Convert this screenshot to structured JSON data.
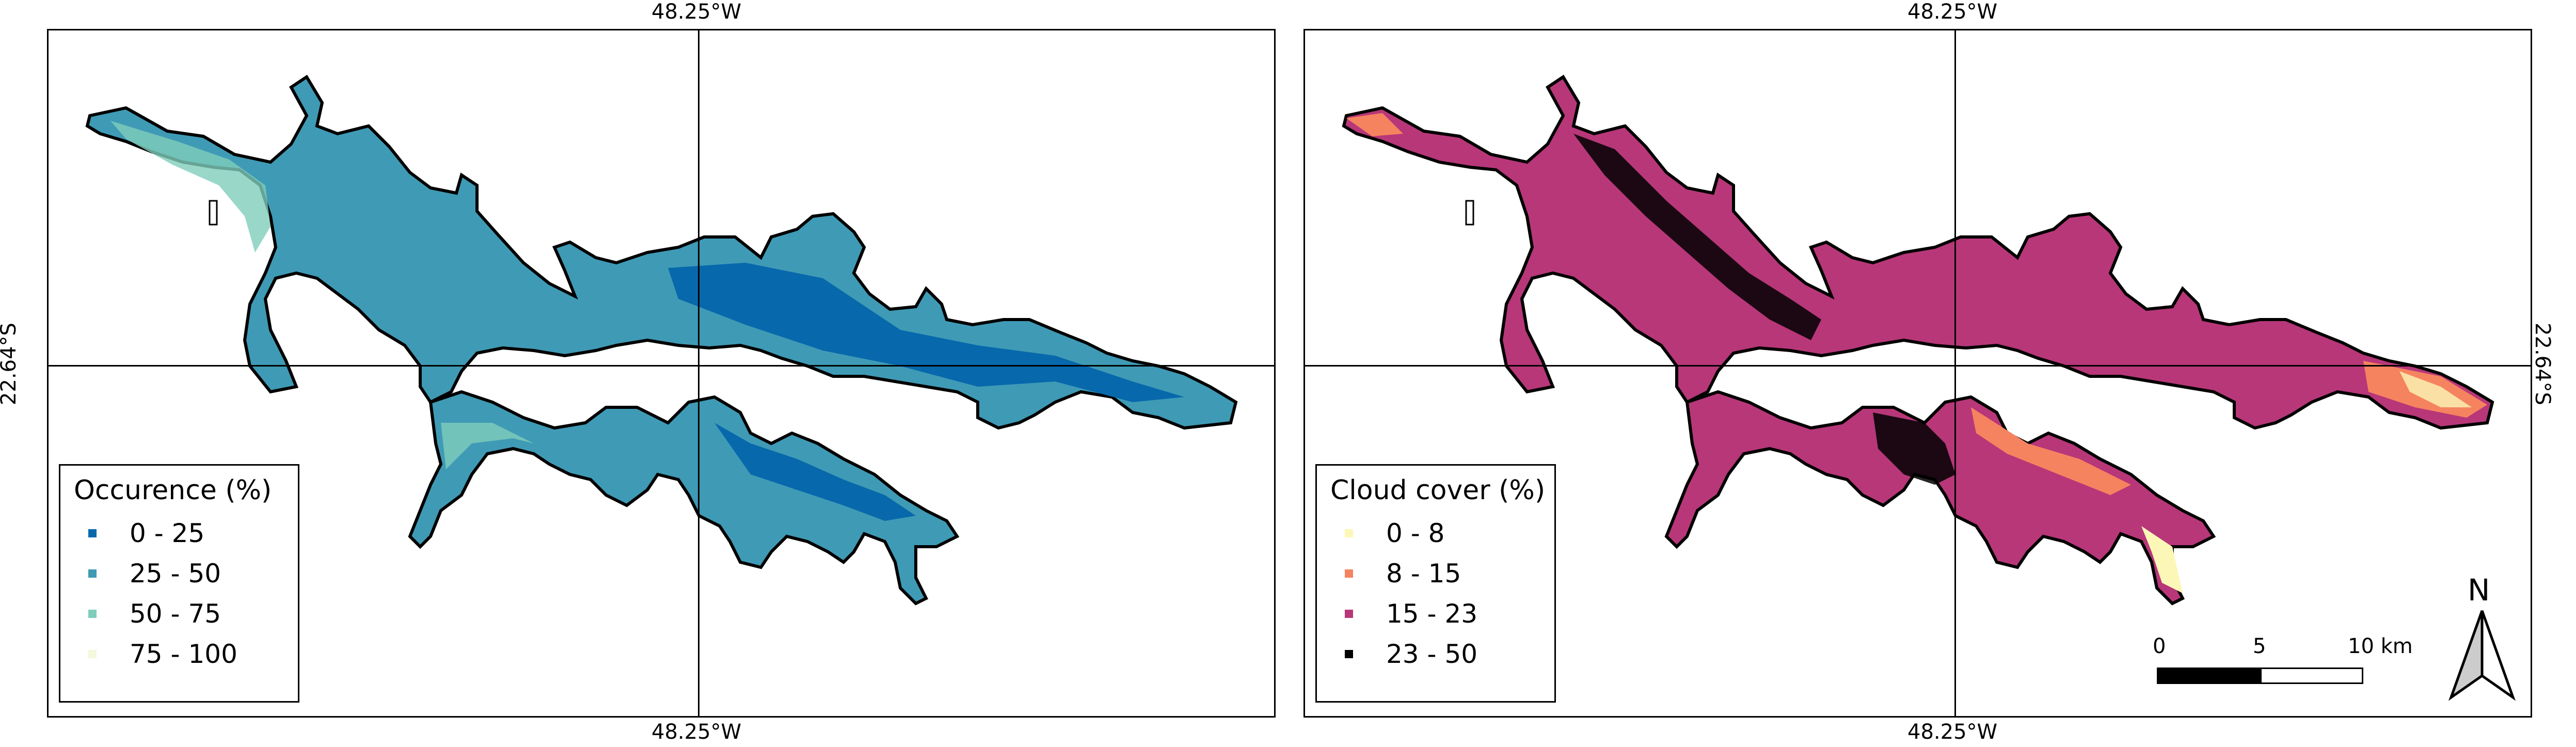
{
  "coords": {
    "lon": "48.25°W",
    "lat": "22.64°S"
  },
  "panels": [
    {
      "legend_title": "Occurence (%)",
      "classes": [
        {
          "label": "0 - 25",
          "color": "#0868ac"
        },
        {
          "label": "25 - 50",
          "color": "#3f9ab5"
        },
        {
          "label": "50 - 75",
          "color": "#7fcdbb"
        },
        {
          "label": "75 - 100",
          "color": "#f3f9dc"
        }
      ],
      "fill_color": "#2f7fb8",
      "outline_color": "#000000"
    },
    {
      "legend_title": "Cloud cover (%)",
      "classes": [
        {
          "label": "0 - 8",
          "color": "#fcf7b7"
        },
        {
          "label": "8 - 15",
          "color": "#f5835f"
        },
        {
          "label": "15 - 23",
          "color": "#b73779"
        },
        {
          "label": "23 - 50",
          "color": "#000000"
        }
      ],
      "fill_color": "#b73779",
      "outline_color": "#000000"
    }
  ],
  "scalebar": {
    "ticks": [
      "0",
      "5",
      "10 km"
    ]
  },
  "north_arrow": {
    "label": "N",
    "icon": "north-arrow-icon"
  }
}
